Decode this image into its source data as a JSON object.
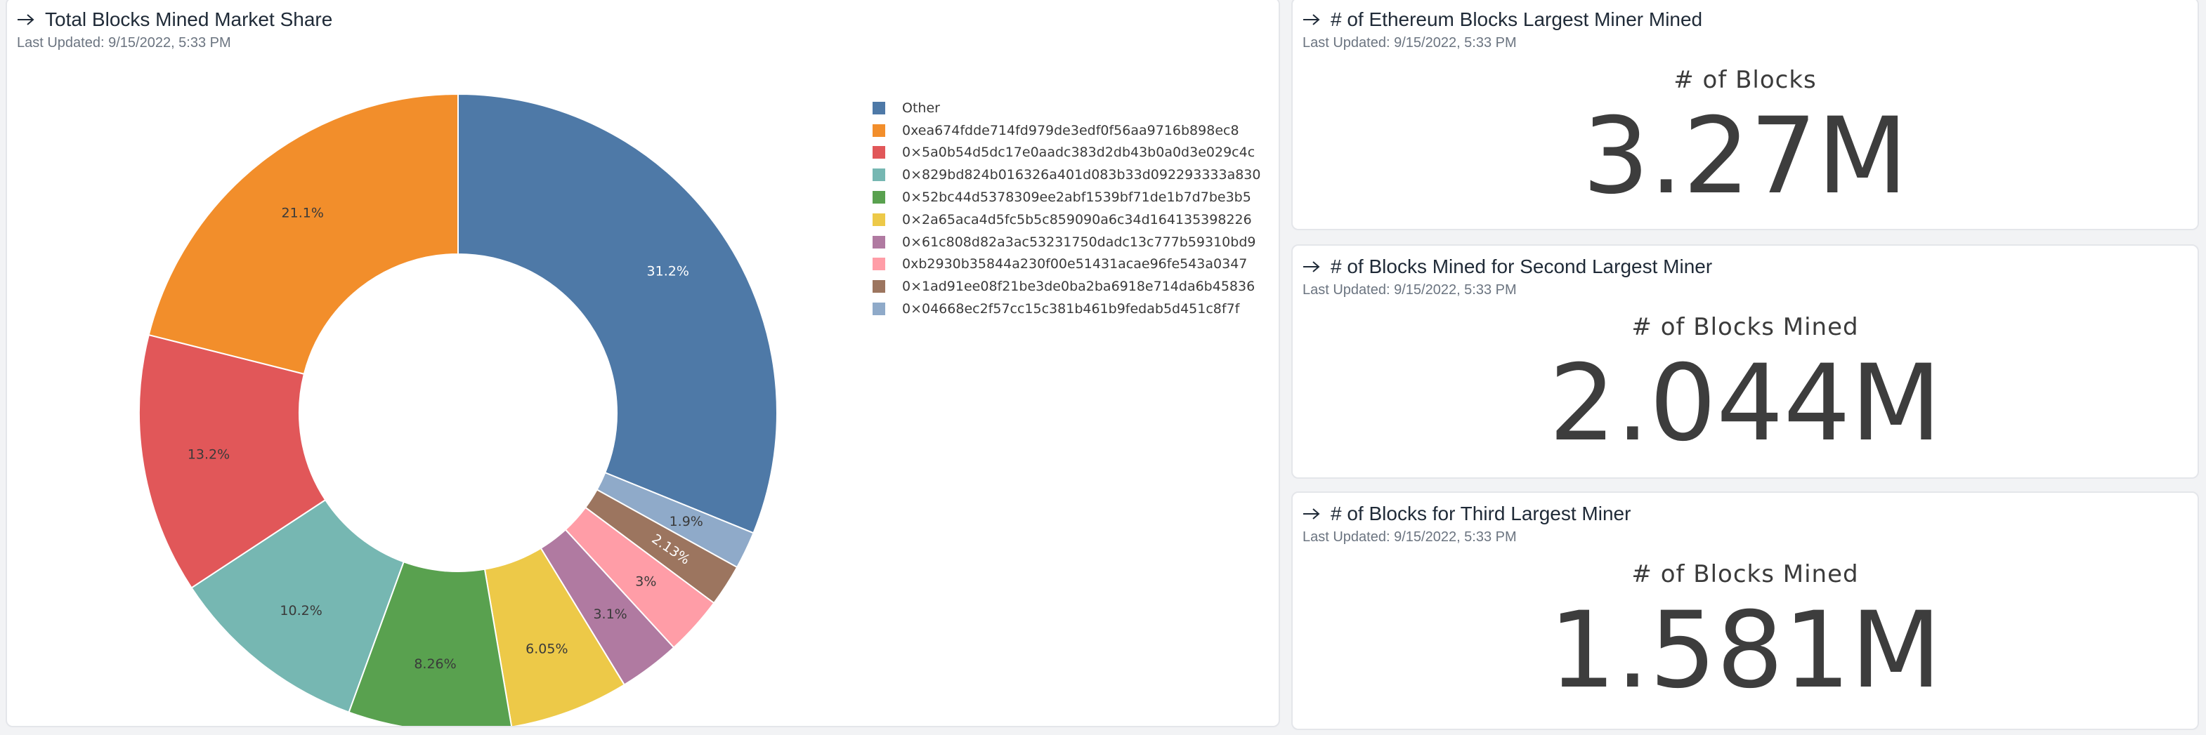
{
  "pie_card": {
    "title": "Total Blocks Mined Market Share",
    "last_updated": "Last Updated: 9/15/2022, 5:33 PM"
  },
  "chart_data": {
    "type": "pie",
    "donut": true,
    "start_angle_deg": 0,
    "direction": "clockwise",
    "legend_position": "right",
    "slices": [
      {
        "label": "Other",
        "value": 31.2,
        "display": "31.2%",
        "color": "#4e79a7",
        "label_color": "#ffffff"
      },
      {
        "label": "0x04668ec2f57cc15c381b461b9fedab5d451c8f7f",
        "value": 1.9,
        "display": "1.9%",
        "color": "#8faac9",
        "label_color": "#3a3a3a"
      },
      {
        "label": "0x1ad91ee08f21be3de0ba2ba6918e714da6b45836",
        "value": 2.13,
        "display": "2.13%",
        "color": "#9c755f",
        "label_color": "#ffffff"
      },
      {
        "label": "0xb2930b35844a230f00e51431acae96fe543a0347",
        "value": 3.0,
        "display": "3%",
        "color": "#ff9da7",
        "label_color": "#3a3a3a"
      },
      {
        "label": "0x61c808d82a3ac53231750dadc13c777b59310bd9",
        "value": 3.1,
        "display": "3.1%",
        "color": "#b07aa1",
        "label_color": "#3a3a3a"
      },
      {
        "label": "0x2a65aca4d5fc5b5c859090a6c34d164135398226",
        "value": 6.05,
        "display": "6.05%",
        "color": "#edc948",
        "label_color": "#3a3a3a"
      },
      {
        "label": "0x52bc44d5378309ee2abf1539bf71de1b7d7be3b5",
        "value": 8.26,
        "display": "8.26%",
        "color": "#59a14f",
        "label_color": "#3a3a3a"
      },
      {
        "label": "0x829bd824b016326a401d083b33d092293333a830",
        "value": 10.2,
        "display": "10.2%",
        "color": "#76b7b2",
        "label_color": "#3a3a3a"
      },
      {
        "label": "0x5a0b54d5dc17e0aadc383d2db43b0a0d3e029c4c",
        "value": 13.2,
        "display": "13.2%",
        "color": "#e15759",
        "label_color": "#3a3a3a"
      },
      {
        "label": "0xea674fdde714fd979de3edf0f56aa9716b898ec8",
        "value": 21.1,
        "display": "21.1%",
        "color": "#f28e2b",
        "label_color": "#3a3a3a"
      }
    ],
    "legend": [
      {
        "label": "Other",
        "color": "#4e79a7"
      },
      {
        "label": "0xea674fdde714fd979de3edf0f56aa9716b898ec8",
        "color": "#f28e2b"
      },
      {
        "label": "0×5a0b54d5dc17e0aadc383d2db43b0a0d3e029c4c",
        "color": "#e15759"
      },
      {
        "label": "0×829bd824b016326a401d083b33d092293333a830",
        "color": "#76b7b2"
      },
      {
        "label": "0×52bc44d5378309ee2abf1539bf71de1b7d7be3b5",
        "color": "#59a14f"
      },
      {
        "label": "0×2a65aca4d5fc5b5c859090a6c34d164135398226",
        "color": "#edc948"
      },
      {
        "label": "0×61c808d82a3ac53231750dadc13c777b59310bd9",
        "color": "#b07aa1"
      },
      {
        "label": "0xb2930b35844a230f00e51431acae96fe543a0347",
        "color": "#ff9da7"
      },
      {
        "label": "0×1ad91ee08f21be3de0ba2ba6918e714da6b45836",
        "color": "#9c755f"
      },
      {
        "label": "0×04668ec2f57cc15c381b461b9fedab5d451c8f7f",
        "color": "#8faac9"
      }
    ]
  },
  "kpi_cards": [
    {
      "title": "# of Ethereum Blocks Largest Miner Mined",
      "last_updated": "Last Updated: 9/15/2022, 5:33 PM",
      "label": "# of Blocks",
      "value": "3.27M"
    },
    {
      "title": "# of Blocks Mined for Second Largest Miner",
      "last_updated": "Last Updated: 9/15/2022, 5:33 PM",
      "label": "# of Blocks Mined",
      "value": "2.044M"
    },
    {
      "title": "# of Blocks for Third Largest Miner",
      "last_updated": "Last Updated: 9/15/2022, 5:33 PM",
      "label": "# of Blocks Mined",
      "value": "1.581M"
    }
  ]
}
